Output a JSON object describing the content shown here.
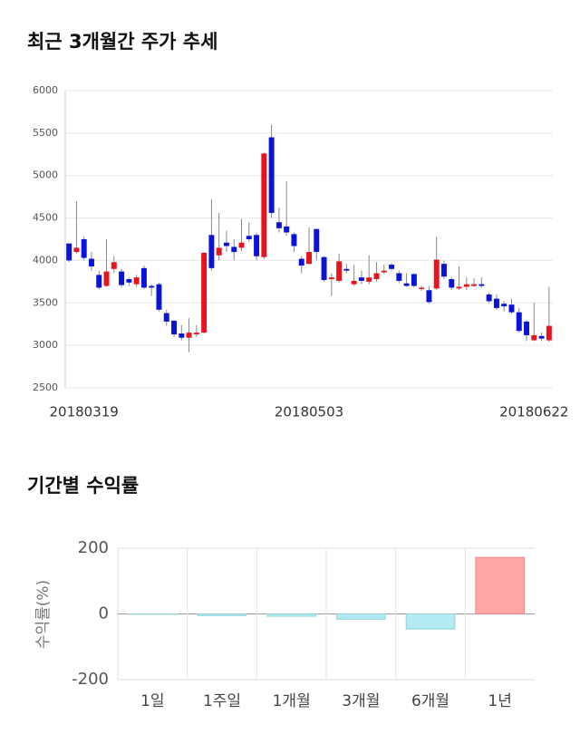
{
  "chart_data": [
    {
      "type": "candlestick",
      "title": "최근 3개월간 주가 추세",
      "categories": [
        null,
        null,
        "20180319",
        null,
        null,
        null,
        null,
        null,
        null,
        null,
        null,
        null,
        null,
        null,
        null,
        null,
        null,
        null,
        null,
        null,
        null,
        null,
        null,
        null,
        null,
        null,
        null,
        null,
        null,
        null,
        null,
        null,
        "20180503",
        null,
        null,
        null,
        null,
        null,
        null,
        null,
        null,
        null,
        null,
        null,
        null,
        null,
        null,
        null,
        null,
        null,
        null,
        null,
        null,
        null,
        null,
        null,
        null,
        null,
        null,
        null,
        null,
        null,
        "20180622",
        null,
        null
      ],
      "open": [
        4200,
        4100,
        4250,
        4020,
        3830,
        3700,
        3900,
        3870,
        3780,
        3720,
        3910,
        3700,
        3720,
        3380,
        3290,
        3140,
        3090,
        3130,
        3150,
        4300,
        4060,
        4210,
        4160,
        4150,
        4290,
        4300,
        4040,
        5450,
        4450,
        4400,
        4310,
        4020,
        3960,
        4370,
        4040,
        3780,
        3760,
        3900,
        3720,
        3800,
        3750,
        3780,
        3860,
        3950,
        3850,
        3730,
        3840,
        3670,
        3650,
        3670,
        3960,
        3780,
        3670,
        3690,
        3700,
        3720,
        3600,
        3550,
        3490,
        3480,
        3390,
        3280,
        3060,
        3110,
        3060
      ],
      "high": [
        4200,
        4700,
        4280,
        4100,
        3880,
        4250,
        4050,
        3900,
        3800,
        3830,
        3940,
        3720,
        3740,
        3420,
        3300,
        3240,
        3320,
        3240,
        4100,
        4720,
        4560,
        4350,
        4250,
        4490,
        4450,
        4330,
        5270,
        5600,
        4620,
        4930,
        4330,
        4050,
        4390,
        4380,
        4050,
        3850,
        4080,
        3960,
        3950,
        3880,
        4060,
        3980,
        3950,
        3970,
        3880,
        3850,
        3850,
        3700,
        3700,
        4280,
        4000,
        3800,
        3930,
        3800,
        3790,
        3800,
        3620,
        3600,
        3520,
        3550,
        3440,
        3300,
        3500,
        3150,
        3690
      ],
      "low": [
        3980,
        4080,
        4000,
        3880,
        3660,
        3690,
        3850,
        3680,
        3700,
        3690,
        3660,
        3580,
        3400,
        3230,
        3100,
        3060,
        2920,
        3100,
        3140,
        3880,
        4000,
        4100,
        4000,
        4110,
        4220,
        4000,
        4020,
        4500,
        4330,
        4290,
        4100,
        3850,
        3950,
        4000,
        3750,
        3580,
        3740,
        3850,
        3700,
        3720,
        3720,
        3750,
        3840,
        3880,
        3730,
        3690,
        3680,
        3640,
        3490,
        3650,
        3780,
        3650,
        3650,
        3650,
        3690,
        3680,
        3500,
        3420,
        3400,
        3370,
        3150,
        3050,
        3050,
        3050,
        3040
      ],
      "close": [
        4000,
        4150,
        4030,
        3930,
        3680,
        3870,
        3980,
        3710,
        3740,
        3800,
        3680,
        3680,
        3420,
        3280,
        3130,
        3090,
        3150,
        3150,
        4090,
        3910,
        4150,
        4170,
        4100,
        4210,
        4250,
        4050,
        5260,
        4560,
        4380,
        4330,
        4170,
        3940,
        4100,
        4100,
        3770,
        3800,
        3990,
        3880,
        3760,
        3760,
        3800,
        3850,
        3880,
        3900,
        3760,
        3700,
        3700,
        3680,
        3510,
        4010,
        3810,
        3680,
        3690,
        3720,
        3720,
        3700,
        3520,
        3440,
        3460,
        3390,
        3170,
        3120,
        3120,
        3080,
        3230
      ],
      "up_color": "#e8141b",
      "down_color": "#0a14d8",
      "ylim": [
        2500,
        6000
      ],
      "yticks": [
        2500,
        3000,
        3500,
        4000,
        4500,
        5000,
        5500,
        6000
      ],
      "grid": true
    },
    {
      "type": "bar",
      "title": "기간별 수익률",
      "y_label": "수익률(%)",
      "categories": [
        "1일",
        "1주일",
        "1개월",
        "3개월",
        "6개월",
        "1년"
      ],
      "values": [
        -1,
        -5,
        -7,
        -16,
        -46,
        172
      ],
      "positive_color": "#ffa6a6",
      "negative_color": "#b2ebf2",
      "ylim": [
        -200,
        200
      ],
      "yticks": [
        -200,
        0,
        200
      ],
      "grid": true
    }
  ]
}
